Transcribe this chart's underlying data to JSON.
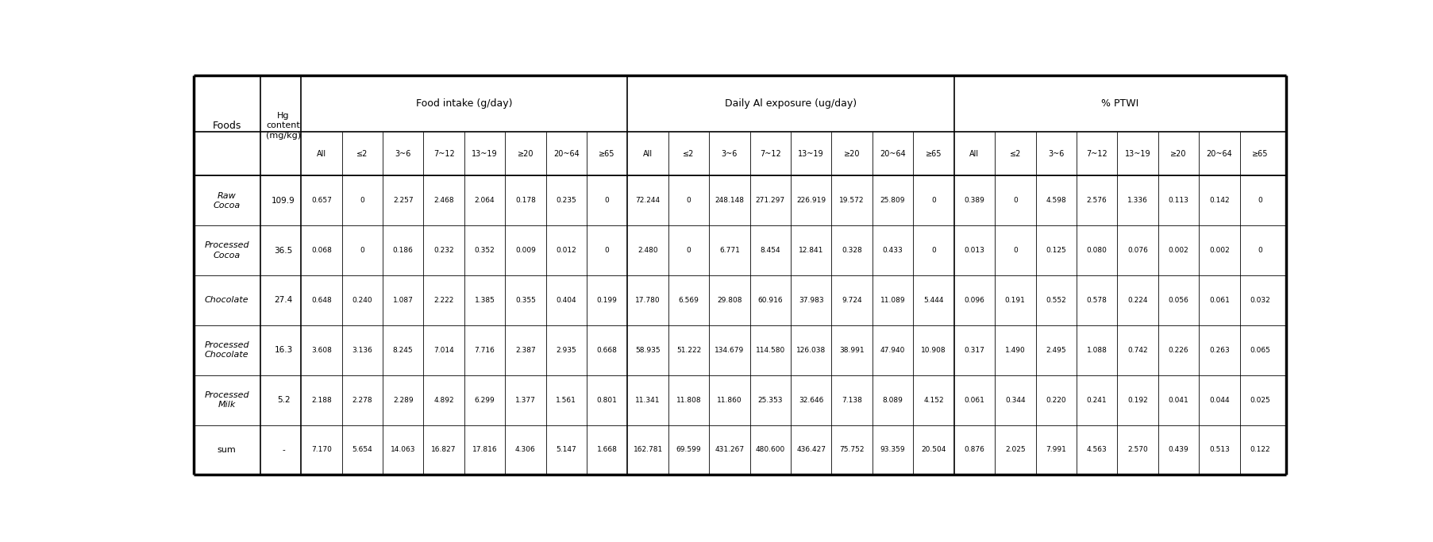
{
  "col_group_labels": [
    "Food intake (g/day)",
    "Daily Al exposure (ug/day)",
    "% PTWI"
  ],
  "sub_labels": [
    "All",
    "≤2",
    "3~6",
    "7~12",
    "13~19",
    "≥20",
    "20~64",
    "≥65"
  ],
  "rows": [
    {
      "food": "Raw\nCocoa",
      "hg": "109.9",
      "values": [
        "0.657",
        "0",
        "2.257",
        "2.468",
        "2.064",
        "0.178",
        "0.235",
        "0",
        "72.244",
        "0",
        "248.148",
        "271.297",
        "226.919",
        "19.572",
        "25.809",
        "0",
        "0.389",
        "0",
        "4.598",
        "2.576",
        "1.336",
        "0.113",
        "0.142",
        "0"
      ]
    },
    {
      "food": "Processed\nCocoa",
      "hg": "36.5",
      "values": [
        "0.068",
        "0",
        "0.186",
        "0.232",
        "0.352",
        "0.009",
        "0.012",
        "0",
        "2.480",
        "0",
        "6.771",
        "8.454",
        "12.841",
        "0.328",
        "0.433",
        "0",
        "0.013",
        "0",
        "0.125",
        "0.080",
        "0.076",
        "0.002",
        "0.002",
        "0"
      ]
    },
    {
      "food": "Chocolate",
      "hg": "27.4",
      "values": [
        "0.648",
        "0.240",
        "1.087",
        "2.222",
        "1.385",
        "0.355",
        "0.404",
        "0.199",
        "17.780",
        "6.569",
        "29.808",
        "60.916",
        "37.983",
        "9.724",
        "11.089",
        "5.444",
        "0.096",
        "0.191",
        "0.552",
        "0.578",
        "0.224",
        "0.056",
        "0.061",
        "0.032"
      ]
    },
    {
      "food": "Processed\nChocolate",
      "hg": "16.3",
      "values": [
        "3.608",
        "3.136",
        "8.245",
        "7.014",
        "7.716",
        "2.387",
        "2.935",
        "0.668",
        "58.935",
        "51.222",
        "134.679",
        "114.580",
        "126.038",
        "38.991",
        "47.940",
        "10.908",
        "0.317",
        "1.490",
        "2.495",
        "1.088",
        "0.742",
        "0.226",
        "0.263",
        "0.065"
      ]
    },
    {
      "food": "Processed\nMilk",
      "hg": "5.2",
      "values": [
        "2.188",
        "2.278",
        "2.289",
        "4.892",
        "6.299",
        "1.377",
        "1.561",
        "0.801",
        "11.341",
        "11.808",
        "11.860",
        "25.353",
        "32.646",
        "7.138",
        "8.089",
        "4.152",
        "0.061",
        "0.344",
        "0.220",
        "0.241",
        "0.192",
        "0.041",
        "0.044",
        "0.025"
      ]
    },
    {
      "food": "sum",
      "hg": "-",
      "values": [
        "7.170",
        "5.654",
        "14.063",
        "16.827",
        "17.816",
        "4.306",
        "5.147",
        "1.668",
        "162.781",
        "69.599",
        "431.267",
        "480.600",
        "436.427",
        "75.752",
        "93.359",
        "20.504",
        "0.876",
        "2.025",
        "7.991",
        "4.563",
        "2.570",
        "0.439",
        "0.513",
        "0.122"
      ]
    }
  ],
  "bg_color": "#ffffff",
  "line_color": "#000000",
  "text_color": "#000000",
  "thick_lw": 2.5,
  "medium_lw": 1.2,
  "thin_lw": 0.6
}
